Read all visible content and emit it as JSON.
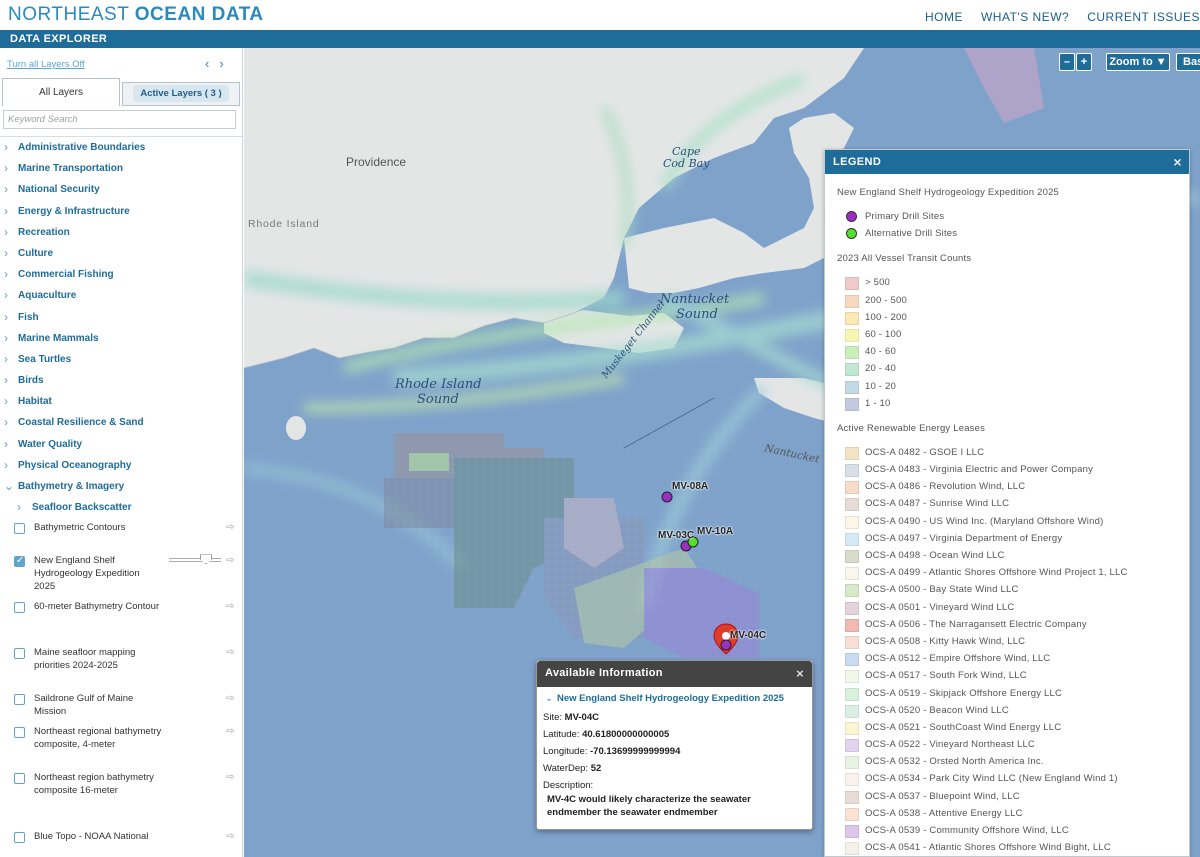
{
  "header": {
    "brand_part1": "NORTHEAST ",
    "brand_part2": "OCEAN DATA",
    "nav": [
      "HOME",
      "WHAT'S NEW?",
      "CURRENT ISSUES"
    ],
    "subbar": "DATA EXPLORER"
  },
  "sidebar": {
    "turn_off_label": "Turn all Layers Off",
    "prev_arrow": "‹",
    "next_arrow": "›",
    "tab_all": "All Layers",
    "tab_active": "Active Layers ( 3 )",
    "search_placeholder": "Keyword Search",
    "categories": [
      "Administrative Boundaries",
      "Marine Transportation",
      "National Security",
      "Energy & Infrastructure",
      "Recreation",
      "Culture",
      "Commercial Fishing",
      "Aquaculture",
      "Fish",
      "Marine Mammals",
      "Sea Turtles",
      "Birds",
      "Habitat",
      "Coastal Resilience & Sand",
      "Water Quality",
      "Physical Oceanography",
      "Bathymetry & Imagery"
    ],
    "subcategory": "Seafloor Backscatter",
    "layers": [
      {
        "label": "Bathymetric Contours",
        "checked": false
      },
      {
        "label": "New England Shelf Hydrogeology Expedition 2025",
        "checked": true
      },
      {
        "label": "60-meter Bathymetry Contour",
        "checked": false
      },
      {
        "label": "Maine seafloor mapping priorities 2024-2025",
        "checked": false
      },
      {
        "label": "Saildrone Gulf of Maine Mission",
        "checked": false
      },
      {
        "label": "Northeast regional bathymetry composite, 4-meter",
        "checked": false
      },
      {
        "label": "Northeast region bathymetry composite 16-meter",
        "checked": false
      },
      {
        "label": "Blue Topo - NOAA National",
        "checked": false
      }
    ]
  },
  "map": {
    "zoom_minus": "–",
    "zoom_plus": "+",
    "zoom_to": "Zoom to ▼",
    "basemap": "Bas",
    "labels": {
      "providence": "Providence",
      "rhode_island_state": "Rhode Island",
      "cape_cod_bay_1": "Cape",
      "cape_cod_bay_2": "Cod Bay",
      "nantucket_sound_1": "Nantucket",
      "nantucket_sound_2": "Sound",
      "ri_sound_1": "Rhode Island",
      "ri_sound_2": "Sound",
      "muskeget": "Muskeget Channel",
      "nantucket": "Nantucket"
    },
    "sites": [
      {
        "name": "MV-08A",
        "type": "primary"
      },
      {
        "name": "MV-03C",
        "type": "primary"
      },
      {
        "name": "MV-10A",
        "type": "alternative"
      },
      {
        "name": "MV-04C",
        "type": "selected"
      }
    ]
  },
  "legend": {
    "title": "LEGEND",
    "close": "×",
    "sections": [
      {
        "title": "New England Shelf Hydrogeology Expedition 2025",
        "items": [
          {
            "label": "Primary Drill Sites",
            "color": "#9b2fc1",
            "shape": "dot"
          },
          {
            "label": "Alternative Drill Sites",
            "color": "#55e02c",
            "shape": "dot"
          }
        ]
      },
      {
        "title": "2023 All Vessel Transit Counts",
        "items": [
          {
            "label": "> 500",
            "color": "#f0c9c9"
          },
          {
            "label": "200 - 500",
            "color": "#f6d9bf"
          },
          {
            "label": "100 - 200",
            "color": "#fbe9b3"
          },
          {
            "label": "60 - 100",
            "color": "#f6f7b4"
          },
          {
            "label": "40 - 60",
            "color": "#c8f0b9"
          },
          {
            "label": "20 - 40",
            "color": "#c0e8d2"
          },
          {
            "label": "10 - 20",
            "color": "#c4d9e6"
          },
          {
            "label": "1 - 10",
            "color": "#c3c9df"
          }
        ]
      },
      {
        "title": "Active Renewable Energy Leases",
        "items": [
          {
            "label": "OCS-A 0482 - GSOE I LLC",
            "color": "#f3e4c6"
          },
          {
            "label": "OCS-A 0483 - Virginia Electric and Power Company",
            "color": "#d6e0e6"
          },
          {
            "label": "OCS-A 0486 - Revolution Wind, LLC",
            "color": "#f6dcc9"
          },
          {
            "label": "OCS-A 0487 - Sunrise Wind LLC",
            "color": "#e7ddd6"
          },
          {
            "label": "OCS-A 0490 - US Wind Inc. (Maryland Offshore Wind)",
            "color": "#fbf6e6"
          },
          {
            "label": "OCS-A 0497 - Virginia Department of Energy",
            "color": "#d5e9f6"
          },
          {
            "label": "OCS-A 0498 - Ocean Wind LLC",
            "color": "#d8dccb"
          },
          {
            "label": "OCS-A 0499 - Atlantic Shores Offshore Wind Project 1, LLC",
            "color": "#f9f6ec"
          },
          {
            "label": "OCS-A 0500 - Bay State Wind LLC",
            "color": "#d6e9c8"
          },
          {
            "label": "OCS-A 0501 - Vineyard Wind LLC",
            "color": "#e2d2da"
          },
          {
            "label": "OCS-A 0506 - The Narragansett Electric Company",
            "color": "#f1b9b1"
          },
          {
            "label": "OCS-A 0508 - Kitty Hawk Wind, LLC",
            "color": "#f9dfd6"
          },
          {
            "label": "OCS-A 0512 - Empire Offshore Wind, LLC",
            "color": "#c9dbf2"
          },
          {
            "label": "OCS-A 0517 - South Fork Wind, LLC",
            "color": "#f3f7e8"
          },
          {
            "label": "OCS-A 0519 - Skipjack Offshore Energy LLC",
            "color": "#d8f2de"
          },
          {
            "label": "OCS-A 0520 - Beacon Wind LLC",
            "color": "#dcefe5"
          },
          {
            "label": "OCS-A 0521 - SouthCoast Wind Energy LLC",
            "color": "#fcf5d2"
          },
          {
            "label": "OCS-A 0522 - Vineyard Northeast LLC",
            "color": "#e2d3f1"
          },
          {
            "label": "OCS-A 0532 - Orsted North America Inc.",
            "color": "#e8f3e2"
          },
          {
            "label": "OCS-A 0534 - Park City Wind LLC (New England Wind 1)",
            "color": "#fbf1ec"
          },
          {
            "label": "OCS-A 0537 - Bluepoint Wind, LLC",
            "color": "#e8ddd6"
          },
          {
            "label": "OCS-A 0538 - Attentive Energy LLC",
            "color": "#fbe3d3"
          },
          {
            "label": "OCS-A 0539 - Community Offshore Wind, LLC",
            "color": "#dcc7ea"
          },
          {
            "label": "OCS-A 0541 - Atlantic Shores Offshore Wind Bight, LLC",
            "color": "#f4f1e9"
          }
        ]
      }
    ]
  },
  "popup": {
    "title": "Available Information",
    "close": "×",
    "layer_name": "New England Shelf Hydrogeology Expedition 2025",
    "site_label": "Site:",
    "site_value": "MV-04C",
    "lat_label": "Latitude:",
    "lat_value": "40.61800000000005",
    "lon_label": "Longitude:",
    "lon_value": "-70.13699999999994",
    "depth_label": "WaterDep:",
    "depth_value": "52",
    "desc_label": "Description:",
    "desc_value": "MV-4C would likely characterize the seawater endmember the seawater endmember"
  }
}
